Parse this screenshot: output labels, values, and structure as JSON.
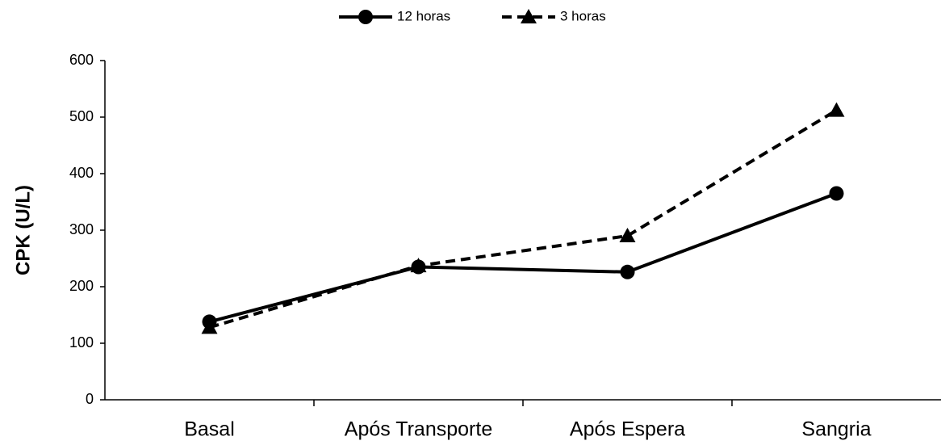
{
  "chart_data": {
    "type": "line",
    "ylabel": "CPK (U/L)",
    "categories": [
      "Basal",
      "Após Transporte",
      "Após Espera",
      "Sangria"
    ],
    "series": [
      {
        "name": "12 horas",
        "color": "#000000",
        "line_style": "solid",
        "marker": "circle",
        "values": [
          138,
          235,
          226,
          365
        ]
      },
      {
        "name": "3 horas",
        "color": "#000000",
        "line_style": "dashed",
        "marker": "triangle",
        "values": [
          128,
          237,
          290,
          512
        ]
      }
    ],
    "ylim": [
      0,
      600
    ],
    "yticks": [
      0,
      100,
      200,
      300,
      400,
      500,
      600
    ],
    "grid": false,
    "legend": "top"
  }
}
